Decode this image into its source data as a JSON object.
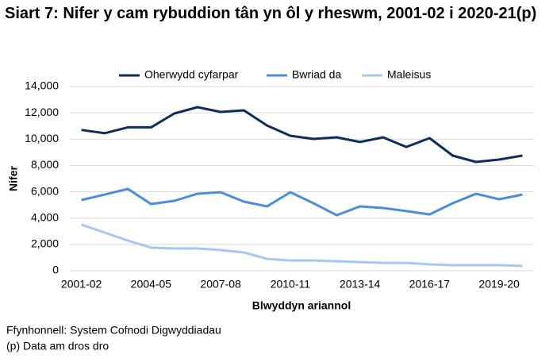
{
  "chart_data": {
    "type": "line",
    "title": "Siart 7: Nifer y cam rybuddion tân yn ôl y rheswm, 2001-02 i 2020-21(p)",
    "x_label": "Blwyddyn ariannol",
    "y_label": "Nifer",
    "notes": [
      "Ffynhonnell: System Cofnodi Digwyddiadau",
      "(p) Data am dros dro"
    ],
    "categories": [
      "2001-02",
      null,
      null,
      "2004-05",
      null,
      null,
      "2007-08",
      null,
      null,
      "2010-11",
      null,
      null,
      "2013-14",
      null,
      null,
      "2016-17",
      null,
      null,
      "2019-20",
      null
    ],
    "series": [
      {
        "name": "Oherwydd cyfarpar",
        "color": "#0f2d5c",
        "values": [
          10700,
          10450,
          10900,
          10900,
          11950,
          12430,
          12070,
          12190,
          11040,
          10260,
          10020,
          10140,
          9780,
          10140,
          9410,
          10080,
          8750,
          8270,
          8450,
          8750
        ]
      },
      {
        "name": "Bwriad da",
        "color": "#4a8ddc",
        "values": [
          5370,
          5790,
          6220,
          5070,
          5310,
          5850,
          5970,
          5250,
          4890,
          5970,
          5130,
          4220,
          4890,
          4770,
          4530,
          4280,
          5130,
          5850,
          5430,
          5790
        ]
      },
      {
        "name": "Maleisus",
        "color": "#a6c8f0",
        "values": [
          3500,
          2900,
          2290,
          1750,
          1690,
          1690,
          1570,
          1390,
          900,
          780,
          780,
          720,
          660,
          600,
          600,
          480,
          420,
          420,
          420,
          360
        ]
      }
    ],
    "ylim": [
      0,
      14000
    ],
    "yticks": [
      0,
      {
        "value": 2000,
        "label": "2,000"
      },
      {
        "value": 4000,
        "label": "4,000"
      },
      {
        "value": 6000,
        "label": "6,000"
      },
      {
        "value": 8000,
        "label": "8,000"
      },
      {
        "value": 10000,
        "label": "10,000"
      },
      {
        "value": 12000,
        "label": "12,000"
      },
      {
        "value": 14000,
        "label": "14,000"
      }
    ],
    "grid": true,
    "legend": "top"
  }
}
